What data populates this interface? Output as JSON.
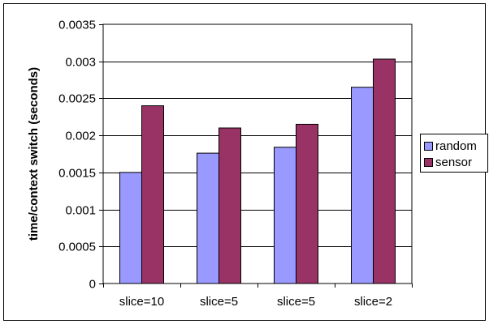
{
  "chart_data": {
    "type": "bar",
    "categories": [
      "slice=10",
      "slice=5",
      "slice=5",
      "slice=2"
    ],
    "series": [
      {
        "name": "random",
        "values": [
          0.0015,
          0.00176,
          0.00184,
          0.00265
        ],
        "color": "#9999ff"
      },
      {
        "name": "sensor",
        "values": [
          0.0024,
          0.0021,
          0.00215,
          0.00303
        ],
        "color": "#993366"
      }
    ],
    "title": "",
    "xlabel": "",
    "ylabel": "time/context switch (seconds)",
    "ylim": [
      0,
      0.0035
    ],
    "yticks": [
      0,
      0.0005,
      0.001,
      0.0015,
      0.002,
      0.0025,
      0.003,
      0.0035
    ],
    "ytick_labels": [
      "0",
      "0.0005",
      "0.001",
      "0.0015",
      "0.002",
      "0.0025",
      "0.003",
      "0.0035"
    ],
    "grid": "horizontal",
    "legend_position": "right",
    "plot_background": "#ffffff"
  }
}
